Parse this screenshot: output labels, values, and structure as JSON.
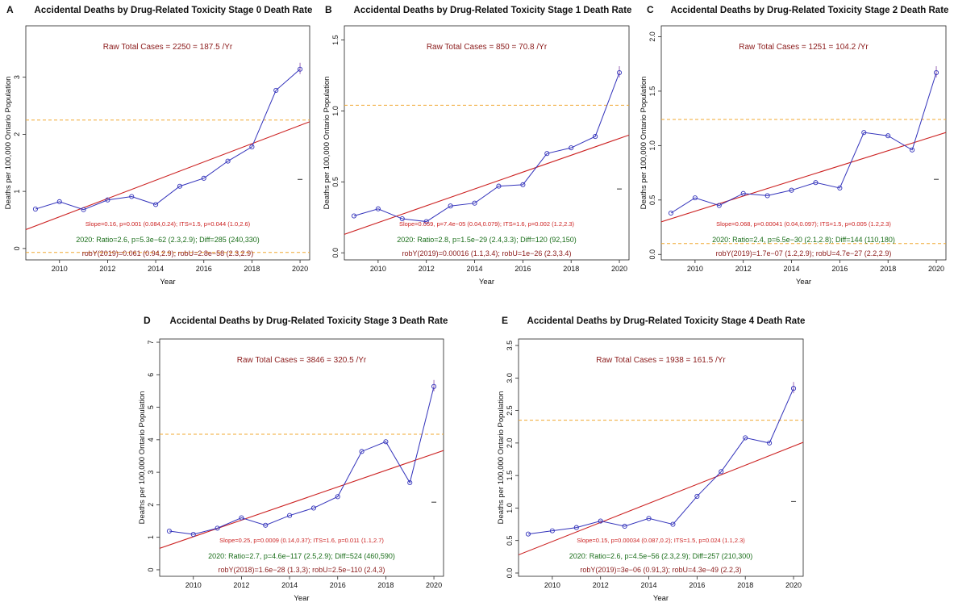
{
  "colors": {
    "regression": "#cc2222",
    "series": "#3333bb",
    "threshold": "#f0a830",
    "raw_text": "#8b1a1a",
    "green_text": "#1a6e1a",
    "axis": "#222222"
  },
  "chart_data": [
    {
      "type": "line",
      "panel_label": "A",
      "title": "Accidental Deaths by Drug-Related Toxicity Stage 0 Death Rate",
      "xlabel": "Year",
      "ylabel": "Deaths per 100,000 Ontario Population",
      "xlim": [
        2008.6,
        2020.4
      ],
      "ylim": [
        -0.2,
        3.9
      ],
      "yticks": [
        0,
        1,
        2,
        3
      ],
      "ytick_labels": [
        "0",
        "1",
        "2",
        "3"
      ],
      "xticks": [
        2010,
        2012,
        2014,
        2016,
        2018,
        2020
      ],
      "xtick_labels": [
        "2010",
        "2012",
        "2014",
        "2016",
        "2018",
        "2020"
      ],
      "x": [
        2009,
        2010,
        2011,
        2012,
        2013,
        2014,
        2015,
        2016,
        2017,
        2018,
        2019,
        2020
      ],
      "values": [
        0.69,
        0.82,
        0.68,
        0.85,
        0.91,
        0.77,
        1.09,
        1.23,
        1.53,
        1.78,
        2.77,
        3.14
      ],
      "regression_line": [
        [
          2008.6,
          0.33
        ],
        [
          2020.4,
          2.22
        ]
      ],
      "upper_threshold": 2.25,
      "lower_threshold": -0.07,
      "marker_2020": 1.21,
      "raw_total_cases": "Raw Total Cases = 2250 = 187.5 /Yr",
      "slope_text": "Slope=0.16, p=0.001 (0.084,0.24);  ITS=1.5, p=0.044 (1.0,2.6)",
      "ratio_text": "2020:  Ratio=2.6, p=5.3e−62 (2.3,2.9);  Diff=285 (240,330)",
      "rob_text": "robY(2019)=0.061 (0.94,2.9);  robU=2.8e−58 (2.3,2.9)"
    },
    {
      "type": "line",
      "panel_label": "B",
      "title": "Accidental Deaths by Drug-Related Toxicity Stage 1 Death Rate",
      "xlabel": "Year",
      "ylabel": "Deaths per 100,000 Ontario Population",
      "xlim": [
        2008.6,
        2020.4
      ],
      "ylim": [
        -0.05,
        1.6
      ],
      "yticks": [
        0.0,
        0.5,
        1.0,
        1.5
      ],
      "ytick_labels": [
        "0.0",
        "0.5",
        "1.0",
        "1.5"
      ],
      "xticks": [
        2010,
        2012,
        2014,
        2016,
        2018,
        2020
      ],
      "xtick_labels": [
        "2010",
        "2012",
        "2014",
        "2016",
        "2018",
        "2020"
      ],
      "x": [
        2009,
        2010,
        2011,
        2012,
        2013,
        2014,
        2015,
        2016,
        2017,
        2018,
        2019,
        2020
      ],
      "values": [
        0.26,
        0.31,
        0.24,
        0.22,
        0.33,
        0.35,
        0.47,
        0.48,
        0.7,
        0.74,
        0.82,
        1.27
      ],
      "regression_line": [
        [
          2008.6,
          0.13
        ],
        [
          2020.4,
          0.83
        ]
      ],
      "upper_threshold": 1.04,
      "lower_threshold": null,
      "marker_2020": 0.45,
      "raw_total_cases": "Raw Total Cases = 850 = 70.8 /Yr",
      "slope_text": "Slope=0.059, p=7.4e−05 (0.04,0.079);  ITS=1.6, p=0.002 (1.2,2.3)",
      "ratio_text": "2020:  Ratio=2.8, p=1.5e−29 (2.4,3.3);  Diff=120 (92,150)",
      "rob_text": "robY(2019)=0.00016 (1.1,3.4);  robU=1e−26 (2.3,3.4)"
    },
    {
      "type": "line",
      "panel_label": "C",
      "title": "Accidental Deaths by Drug-Related Toxicity Stage 2 Death Rate",
      "xlabel": "Year",
      "ylabel": "Deaths per 100,000 Ontario Population",
      "xlim": [
        2008.6,
        2020.4
      ],
      "ylim": [
        -0.05,
        2.1
      ],
      "yticks": [
        0.0,
        0.5,
        1.0,
        1.5,
        2.0
      ],
      "ytick_labels": [
        "0.0",
        "0.5",
        "1.0",
        "1.5",
        "2.0"
      ],
      "xticks": [
        2010,
        2012,
        2014,
        2016,
        2018,
        2020
      ],
      "xtick_labels": [
        "2010",
        "2012",
        "2014",
        "2016",
        "2018",
        "2020"
      ],
      "x": [
        2009,
        2010,
        2011,
        2012,
        2013,
        2014,
        2015,
        2016,
        2017,
        2018,
        2019,
        2020
      ],
      "values": [
        0.38,
        0.52,
        0.45,
        0.56,
        0.54,
        0.59,
        0.66,
        0.61,
        1.12,
        1.09,
        0.96,
        1.67
      ],
      "regression_line": [
        [
          2008.6,
          0.3
        ],
        [
          2020.4,
          1.12
        ]
      ],
      "upper_threshold": 1.24,
      "lower_threshold": 0.1,
      "marker_2020": 0.69,
      "raw_total_cases": "Raw Total Cases = 1251 = 104.2 /Yr",
      "slope_text": "Slope=0.068, p=0.00041 (0.04,0.097);  ITS=1.5, p=0.005 (1.2,2.3)",
      "ratio_text": "2020:  Ratio=2.4, p=6.5e−30 (2.1,2.8);  Diff=144 (110,180)",
      "rob_text": "robY(2019)=1.7e−07 (1.2,2.9);  robU=4.7e−27 (2.2,2.9)"
    },
    {
      "type": "line",
      "panel_label": "D",
      "title": "Accidental Deaths by Drug-Related Toxicity Stage 3 Death Rate",
      "xlabel": "Year",
      "ylabel": "Deaths per 100,000 Ontario Population",
      "xlim": [
        2008.6,
        2020.4
      ],
      "ylim": [
        -0.2,
        7.1
      ],
      "yticks": [
        0,
        1,
        2,
        3,
        4,
        5,
        6,
        7
      ],
      "ytick_labels": [
        "0",
        "1",
        "2",
        "3",
        "4",
        "5",
        "6",
        "7"
      ],
      "xticks": [
        2010,
        2012,
        2014,
        2016,
        2018,
        2020
      ],
      "xtick_labels": [
        "2010",
        "2012",
        "2014",
        "2016",
        "2018",
        "2020"
      ],
      "x": [
        2009,
        2010,
        2011,
        2012,
        2013,
        2014,
        2015,
        2016,
        2017,
        2018,
        2019,
        2020
      ],
      "values": [
        1.19,
        1.09,
        1.28,
        1.6,
        1.37,
        1.67,
        1.9,
        2.25,
        3.64,
        3.94,
        2.68,
        5.64
      ],
      "regression_line": [
        [
          2008.6,
          0.66
        ],
        [
          2020.4,
          3.67
        ]
      ],
      "upper_threshold": 4.17,
      "lower_threshold": null,
      "marker_2020": 2.08,
      "raw_total_cases": "Raw Total Cases = 3846 = 320.5 /Yr",
      "slope_text": "Slope=0.25, p=0.0009 (0.14,0.37);  ITS=1.6, p=0.011 (1.1,2.7)",
      "ratio_text": "2020:  Ratio=2.7, p=4.6e−117 (2.5,2.9);  Diff=524 (460,590)",
      "rob_text": "robY(2018)=1.6e−28 (1.3,3);  robU=2.5e−110 (2.4,3)"
    },
    {
      "type": "line",
      "panel_label": "E",
      "title": "Accidental Deaths by Drug-Related Toxicity Stage 4 Death Rate",
      "xlabel": "Year",
      "ylabel": "Deaths per 100,000 Ontario Population",
      "xlim": [
        2008.6,
        2020.4
      ],
      "ylim": [
        -0.05,
        3.6
      ],
      "yticks": [
        0.0,
        0.5,
        1.0,
        1.5,
        2.0,
        2.5,
        3.0,
        3.5
      ],
      "ytick_labels": [
        "0.0",
        "0.5",
        "1.0",
        "1.5",
        "2.0",
        "2.5",
        "3.0",
        "3.5"
      ],
      "xticks": [
        2010,
        2012,
        2014,
        2016,
        2018,
        2020
      ],
      "xtick_labels": [
        "2010",
        "2012",
        "2014",
        "2016",
        "2018",
        "2020"
      ],
      "x": [
        2009,
        2010,
        2011,
        2012,
        2013,
        2014,
        2015,
        2016,
        2017,
        2018,
        2019,
        2020
      ],
      "values": [
        0.6,
        0.65,
        0.7,
        0.8,
        0.72,
        0.84,
        0.75,
        1.18,
        1.56,
        2.08,
        2.0,
        2.84
      ],
      "regression_line": [
        [
          2008.6,
          0.28
        ],
        [
          2020.4,
          2.01
        ]
      ],
      "upper_threshold": 2.35,
      "lower_threshold": null,
      "marker_2020": 1.1,
      "raw_total_cases": "Raw Total Cases = 1938 = 161.5 /Yr",
      "slope_text": "Slope=0.15, p=0.00034 (0.087,0.2);  ITS=1.5, p=0.024 (1.1,2.3)",
      "ratio_text": "2020:  Ratio=2.6, p=4.5e−56 (2.3,2.9);  Diff=257 (210,300)",
      "rob_text": "robY(2019)=3e−06 (0.91,3);  robU=4.3e−49 (2.2,3)"
    }
  ]
}
